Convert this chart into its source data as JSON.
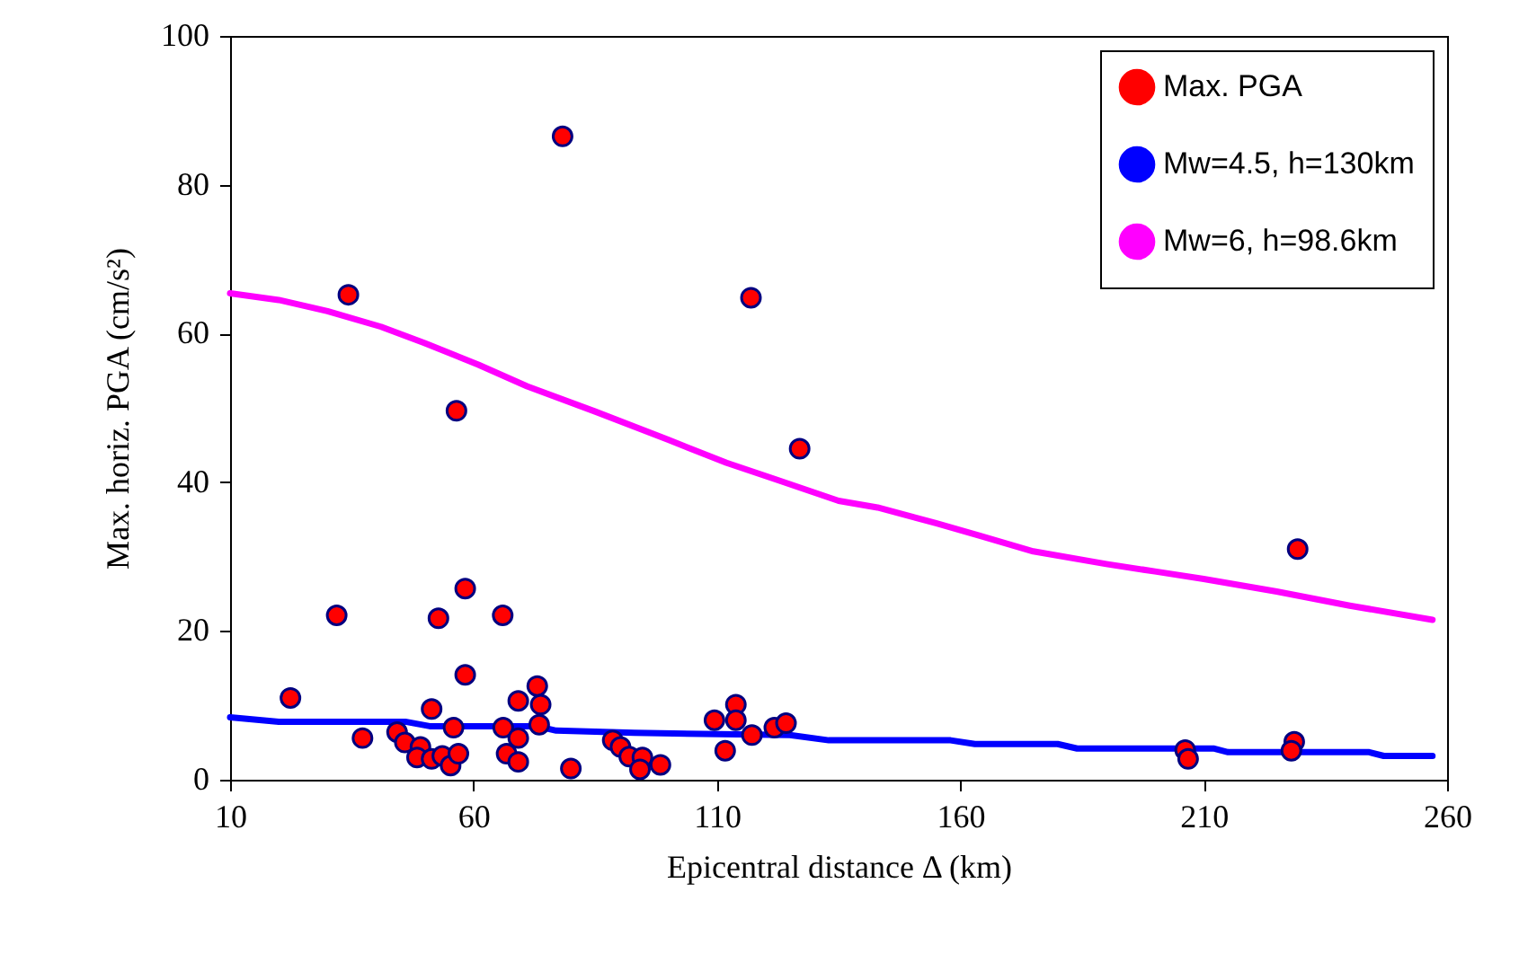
{
  "chart_data": {
    "type": "scatter",
    "xlabel": "Epicentral distance Δ (km)",
    "ylabel": "Max. horiz. PGA (cm/s²)",
    "xlim": [
      10,
      260
    ],
    "xticks": [
      10,
      60,
      110,
      160,
      210,
      260
    ],
    "ylim": [
      0,
      100
    ],
    "yticks": [
      0,
      20,
      40,
      60,
      80,
      100
    ],
    "grid": false,
    "legend": "top right",
    "series": [
      {
        "name": "Max. PGA",
        "marker": "circle",
        "color": "#ff0000",
        "x": [
          22.4,
          31.9,
          34.3,
          37.2,
          52.8,
          58.3,
          66.0,
          58.3,
          51.4,
          55.9,
          44.3,
          45.9,
          49.1,
          48.4,
          51.4,
          53.6,
          55.3,
          56.9,
          56.5,
          78.3,
          73.1,
          69.2,
          73.8,
          73.5,
          66.1,
          69.2,
          66.8,
          69.2,
          80.0,
          88.6,
          90.2,
          92.0,
          94.7,
          94.2,
          98.4,
          109.5,
          113.9,
          113.9,
          111.7,
          117.0,
          117.2,
          121.8,
          124.2,
          127.0,
          206.2,
          206.8,
          228.6,
          228.0,
          229.3
        ],
        "values": [
          11.0,
          22.1,
          65.2,
          5.6,
          21.7,
          25.7,
          22.1,
          14.1,
          9.5,
          7.0,
          6.4,
          5.0,
          4.4,
          3.0,
          2.8,
          3.2,
          1.9,
          3.5,
          49.6,
          86.5,
          12.6,
          10.6,
          10.1,
          7.4,
          7.0,
          5.6,
          3.5,
          2.4,
          1.5,
          5.3,
          4.4,
          3.1,
          3.0,
          1.4,
          2.0,
          8.0,
          10.1,
          8.0,
          3.9,
          64.8,
          6.0,
          7.0,
          7.6,
          44.5,
          4.0,
          2.8,
          5.1,
          3.9,
          31.0
        ]
      },
      {
        "name": "Mw=4.5, h=130km",
        "type": "line",
        "color": "#0000ff",
        "marker": "none",
        "line_style": "solid",
        "x": [
          10,
          20,
          46,
          51,
          73,
          77,
          93,
          125,
          133,
          158,
          163,
          180,
          184,
          212,
          215,
          244,
          247,
          257
        ],
        "values": [
          8.4,
          7.8,
          7.8,
          7.2,
          7.2,
          6.6,
          6.3,
          6.0,
          5.3,
          5.3,
          4.8,
          4.8,
          4.2,
          4.2,
          3.7,
          3.7,
          3.2,
          3.2
        ]
      },
      {
        "name": "Mw=6, h=98.6km",
        "type": "line",
        "color": "#ff00ff",
        "marker": "none",
        "line_style": "solid",
        "x": [
          10,
          20,
          30,
          41,
          50,
          61,
          71,
          85,
          100,
          112,
          122,
          135,
          143,
          155,
          164,
          175,
          190,
          200,
          210,
          225,
          240,
          257
        ],
        "values": [
          65.4,
          64.5,
          63.0,
          60.9,
          58.7,
          55.8,
          52.9,
          49.5,
          45.7,
          42.6,
          40.4,
          37.5,
          36.6,
          34.5,
          32.8,
          30.7,
          29.0,
          28.0,
          27.0,
          25.3,
          23.4,
          21.5
        ]
      }
    ]
  }
}
